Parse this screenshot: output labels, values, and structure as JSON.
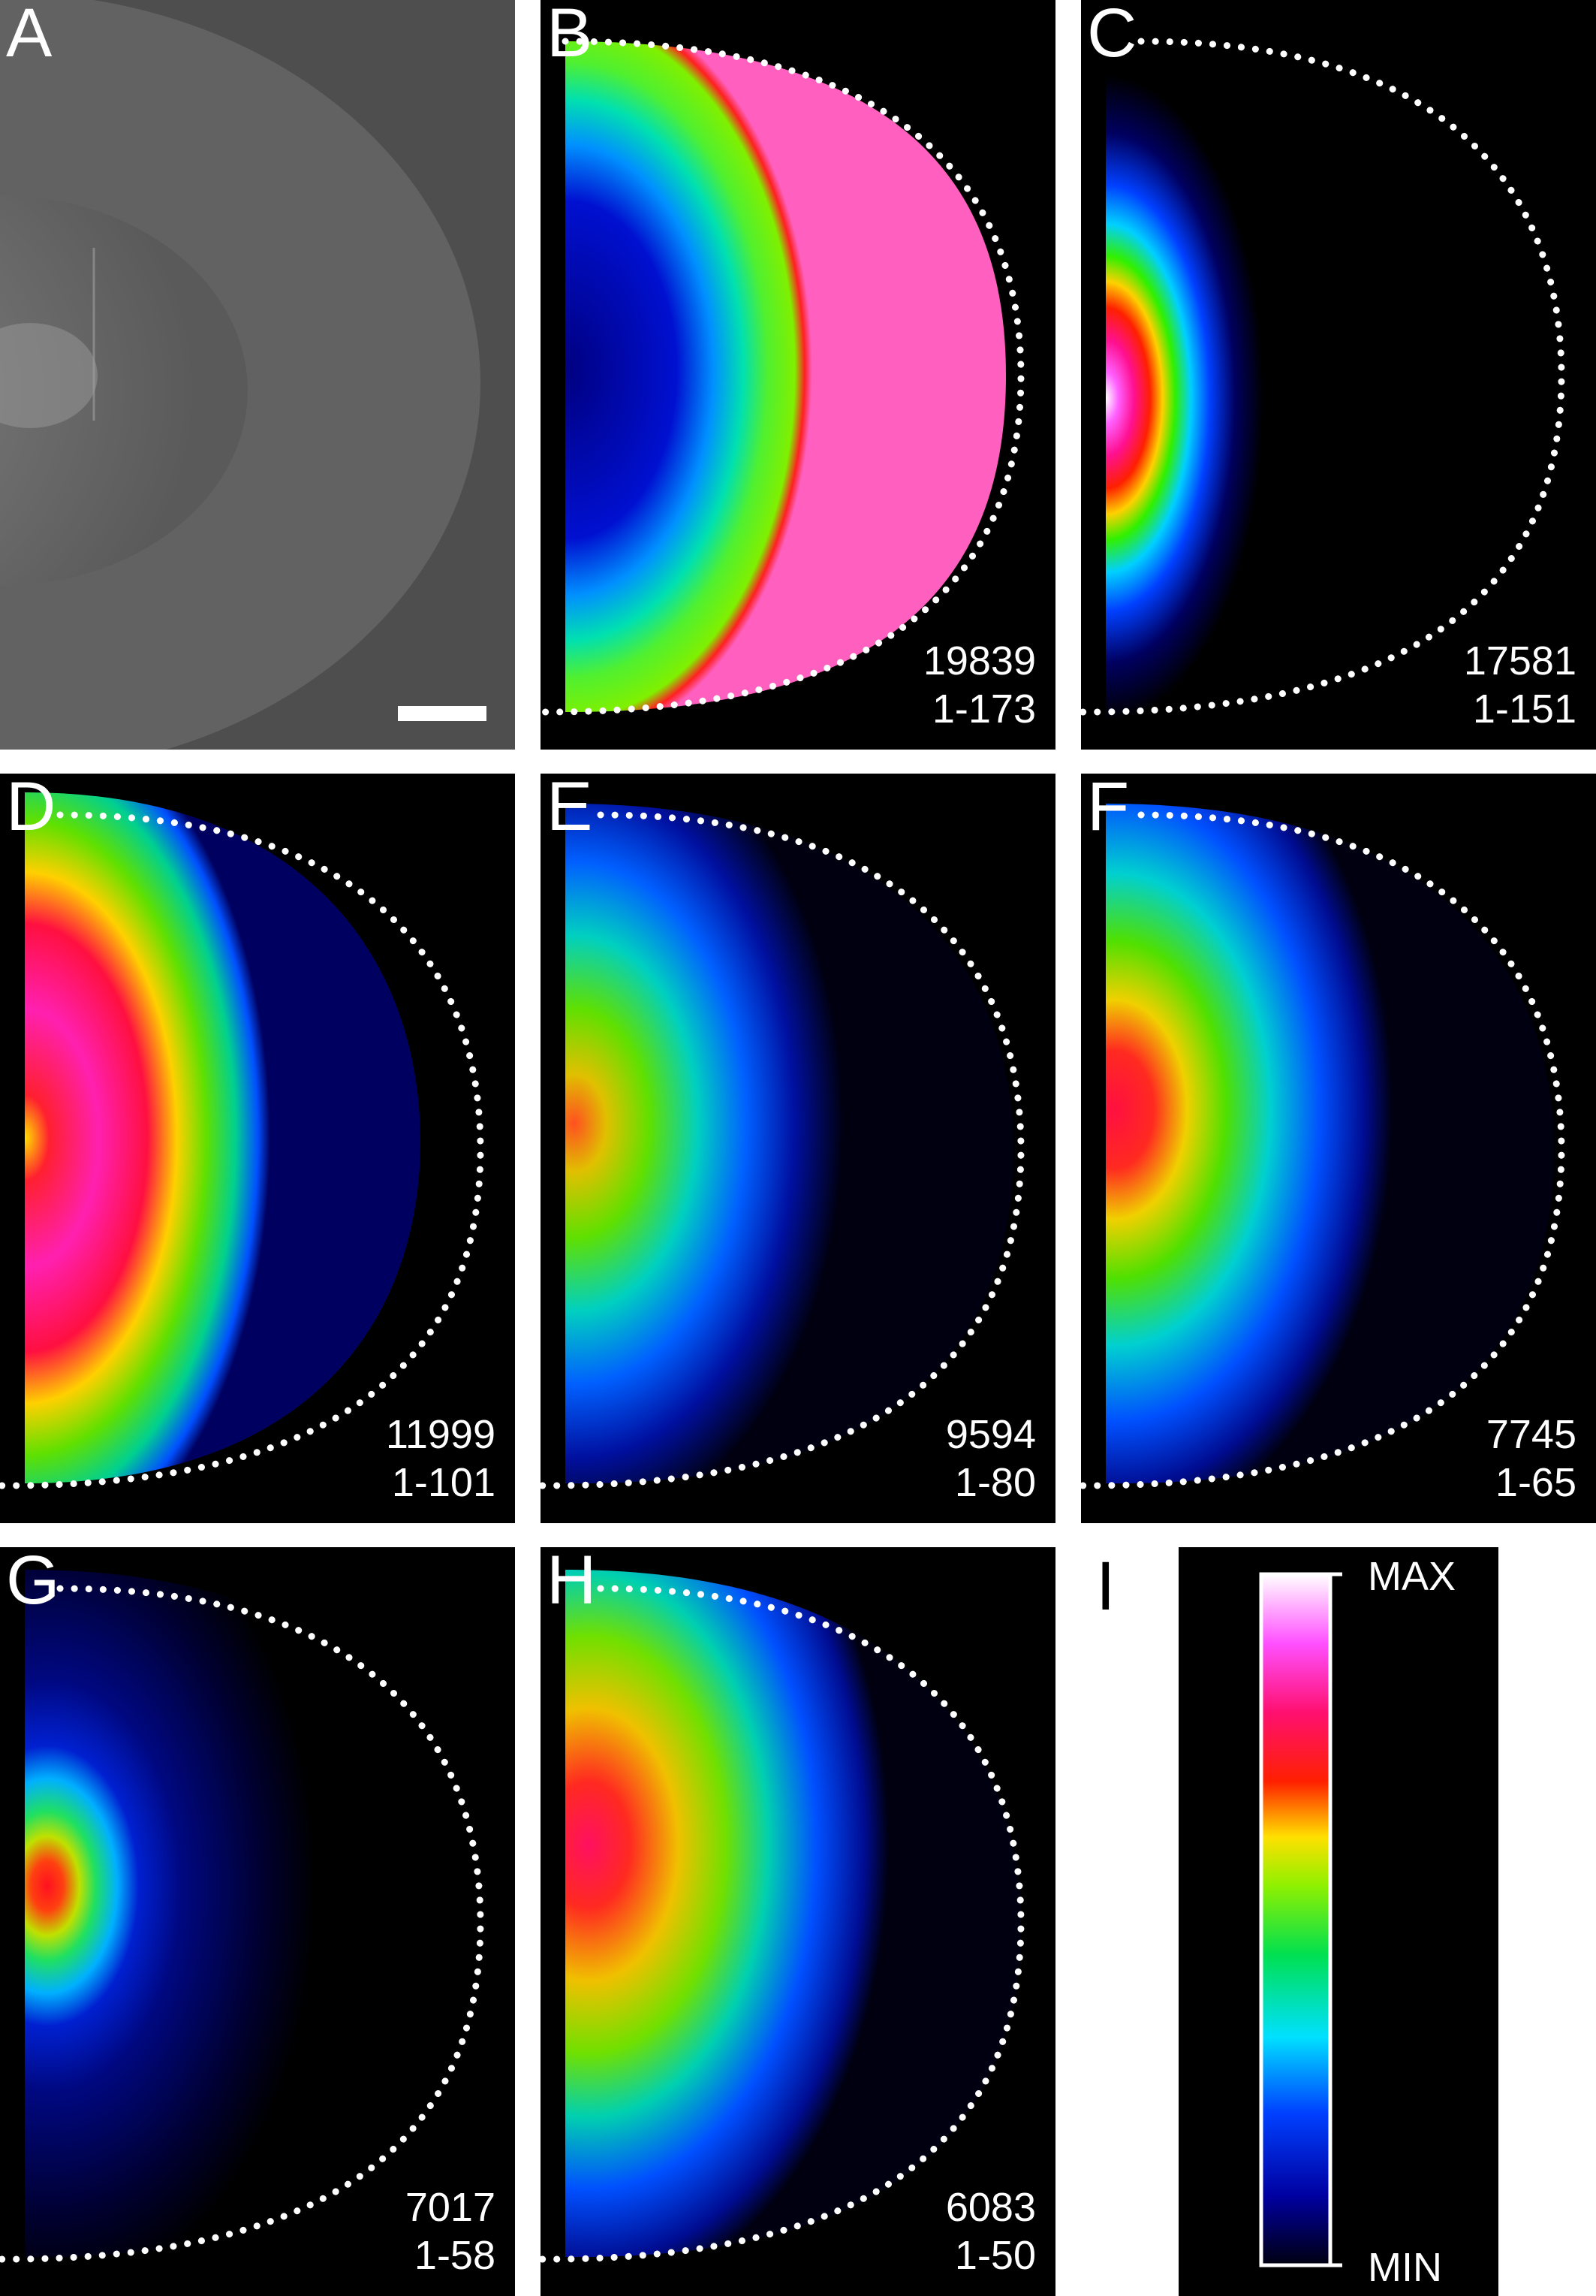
{
  "panels": [
    {
      "letter": "A",
      "count": "",
      "range": ""
    },
    {
      "letter": "B",
      "count": "19839",
      "range": "1-173"
    },
    {
      "letter": "C",
      "count": "17581",
      "range": "1-151"
    },
    {
      "letter": "D",
      "count": "11999",
      "range": "1-101"
    },
    {
      "letter": "E",
      "count": "9594",
      "range": "1-80"
    },
    {
      "letter": "F",
      "count": "7745",
      "range": "1-65"
    },
    {
      "letter": "G",
      "count": "7017",
      "range": "1-58"
    },
    {
      "letter": "H",
      "count": "6083",
      "range": "1-50"
    }
  ],
  "colorbar": {
    "letter": "I",
    "max_label": "MAX",
    "min_label": "MIN"
  },
  "colors": {
    "background": "#000000",
    "outline": "#ffffff",
    "colormap": [
      "#0a0a3a",
      "#0000c8",
      "#0070ff",
      "#00e0ff",
      "#00e050",
      "#a0f000",
      "#ffe000",
      "#ff3000",
      "#ff1090",
      "#ff60ff",
      "#ffffff"
    ]
  }
}
